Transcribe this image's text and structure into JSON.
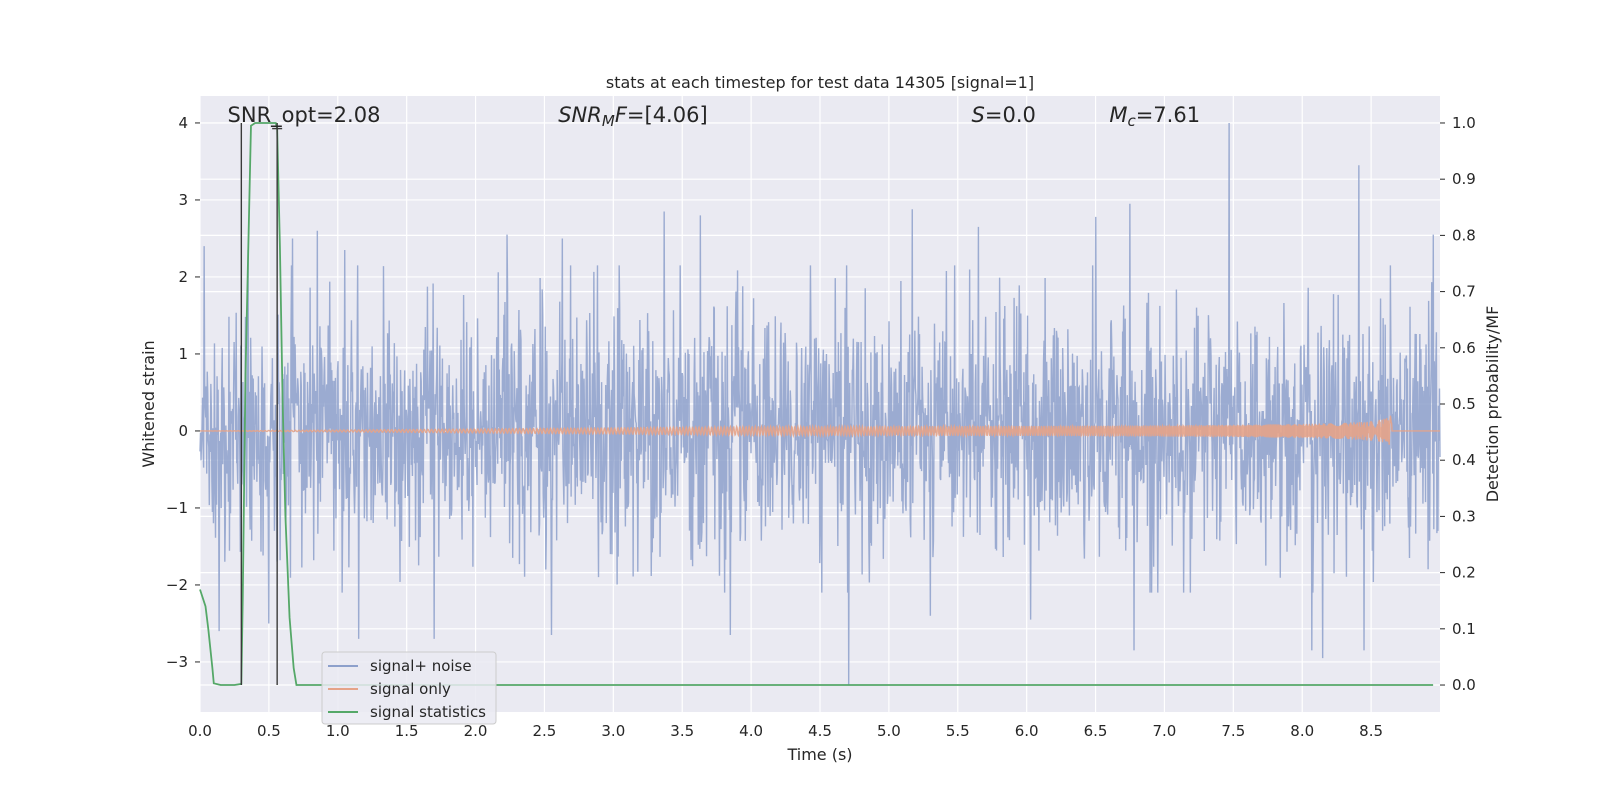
{
  "chart_data": {
    "type": "line",
    "title": "stats at each timestep for test data 14305 [signal=1]",
    "xlabel": "Time (s)",
    "ylabel": "Whitened strain",
    "y2label": "Detection probability/MF",
    "xlim": [
      0.0,
      9.0
    ],
    "ylim": [
      -3.65,
      4.35
    ],
    "y2lim": [
      -0.048,
      1.048
    ],
    "xticks": [
      0.0,
      0.5,
      1.0,
      1.5,
      2.0,
      2.5,
      3.0,
      3.5,
      4.0,
      4.5,
      5.0,
      5.5,
      6.0,
      6.5,
      7.0,
      7.5,
      8.0,
      8.5
    ],
    "xtick_labels": [
      "0.0",
      "0.5",
      "1.0",
      "1.5",
      "2.0",
      "2.5",
      "3.0",
      "3.5",
      "4.0",
      "4.5",
      "5.0",
      "5.5",
      "6.0",
      "6.5",
      "7.0",
      "7.5",
      "8.0",
      "8.5"
    ],
    "yticks": [
      -3,
      -2,
      -1,
      0,
      1,
      2,
      3,
      4
    ],
    "ytick_labels": [
      "−3",
      "−2",
      "−1",
      "0",
      "1",
      "2",
      "3",
      "4"
    ],
    "y2ticks": [
      0.0,
      0.1,
      0.2,
      0.3,
      0.4,
      0.5,
      0.6,
      0.7,
      0.8,
      0.9,
      1.0
    ],
    "y2tick_labels": [
      "0.0",
      "0.1",
      "0.2",
      "0.3",
      "0.4",
      "0.5",
      "0.6",
      "0.7",
      "0.8",
      "0.9",
      "1.0"
    ],
    "grid": true,
    "legend_position": "lower-left",
    "annotations": [
      {
        "text": "SNR_opt=2.08",
        "x": 0.2
      },
      {
        "text": "SNR_MF=[4.06]",
        "x": 2.6
      },
      {
        "text": "S=0.0",
        "x": 5.6
      },
      {
        "text": "M_c=7.61",
        "x": 6.6
      }
    ],
    "vertical_lines": [
      0.3,
      0.56
    ],
    "series": [
      {
        "name": "signal+ noise",
        "color": "#8da0cb",
        "axis": "left",
        "kind": "noise",
        "band": [
          -1.3,
          1.3
        ],
        "typical_extent": [
          -2.0,
          2.2
        ],
        "peaks": [
          {
            "x": 0.03,
            "y": 2.4
          },
          {
            "x": 0.35,
            "y": 2.35
          },
          {
            "x": 0.67,
            "y": 2.5
          },
          {
            "x": 0.85,
            "y": 2.6
          },
          {
            "x": 1.05,
            "y": 2.35
          },
          {
            "x": 2.23,
            "y": 2.55
          },
          {
            "x": 2.63,
            "y": 2.5
          },
          {
            "x": 3.37,
            "y": 2.85
          },
          {
            "x": 3.63,
            "y": 2.8
          },
          {
            "x": 5.17,
            "y": 2.88
          },
          {
            "x": 5.65,
            "y": 2.65
          },
          {
            "x": 6.5,
            "y": 2.78
          },
          {
            "x": 6.75,
            "y": 2.95
          },
          {
            "x": 7.47,
            "y": 4.0
          },
          {
            "x": 8.41,
            "y": 3.45
          },
          {
            "x": 8.95,
            "y": 2.55
          }
        ],
        "troughs": [
          {
            "x": 0.14,
            "y": -2.6
          },
          {
            "x": 0.5,
            "y": -2.5
          },
          {
            "x": 1.15,
            "y": -2.7
          },
          {
            "x": 1.7,
            "y": -2.7
          },
          {
            "x": 2.55,
            "y": -2.65
          },
          {
            "x": 3.85,
            "y": -2.65
          },
          {
            "x": 4.71,
            "y": -3.3
          },
          {
            "x": 5.3,
            "y": -2.4
          },
          {
            "x": 6.03,
            "y": -2.45
          },
          {
            "x": 6.78,
            "y": -2.85
          },
          {
            "x": 8.07,
            "y": -2.85
          },
          {
            "x": 8.15,
            "y": -2.95
          },
          {
            "x": 8.45,
            "y": -2.85
          }
        ]
      },
      {
        "name": "signal only",
        "color": "#e5a388",
        "axis": "left",
        "kind": "chirp",
        "merger_time": 8.65,
        "peak_amplitude": 0.22
      },
      {
        "name": "signal statistics",
        "color": "#55a868",
        "axis": "right",
        "kind": "line",
        "x": [
          0.0,
          0.04,
          0.06,
          0.09,
          0.1,
          0.15,
          0.2,
          0.25,
          0.3,
          0.31,
          0.33,
          0.37,
          0.4,
          0.45,
          0.5,
          0.55,
          0.56,
          0.58,
          0.6,
          0.62,
          0.65,
          0.68,
          0.7,
          0.8,
          1.0,
          2.0,
          3.0,
          4.0,
          5.0,
          6.0,
          7.0,
          8.0,
          8.95
        ],
        "y": [
          0.17,
          0.14,
          0.1,
          0.03,
          0.003,
          0.0,
          0.0,
          0.0,
          0.002,
          0.15,
          0.55,
          0.995,
          1.0,
          1.0,
          1.0,
          1.0,
          0.99,
          0.78,
          0.5,
          0.3,
          0.12,
          0.03,
          0.0,
          0.0,
          0.0,
          0.0,
          0.0,
          0.0,
          0.0,
          0.0,
          0.0,
          0.0,
          0.0
        ]
      }
    ]
  }
}
